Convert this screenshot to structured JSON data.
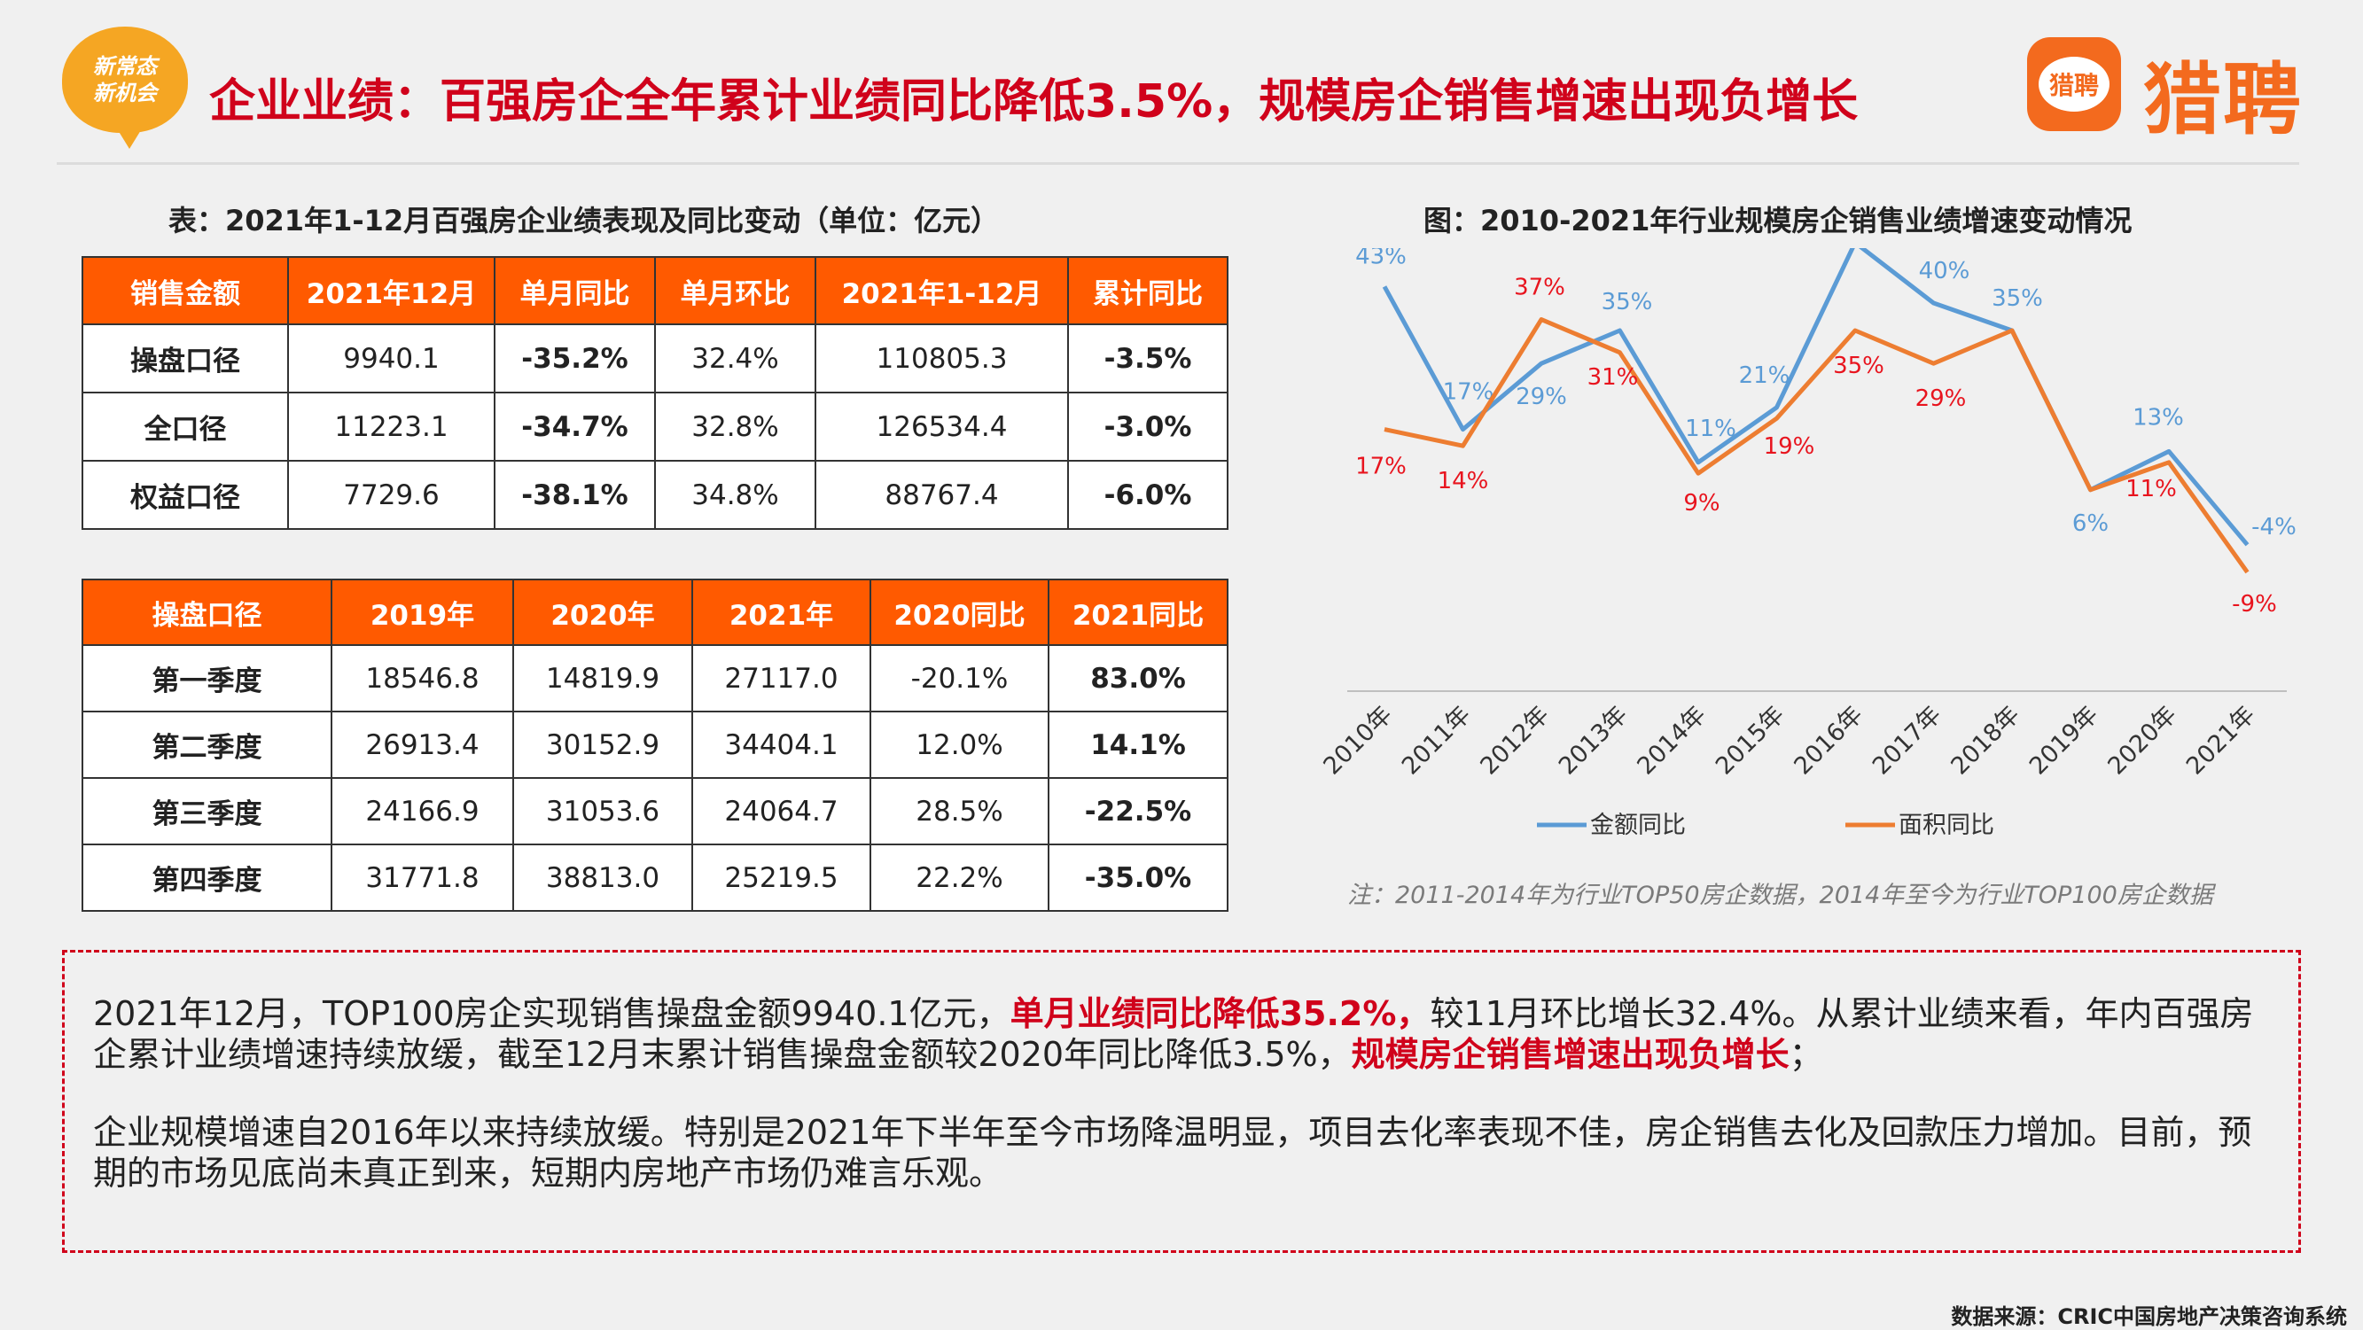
{
  "header": {
    "badge_line1": "新常态",
    "badge_line2": "新机会",
    "title": "企业业绩：百强房企全年累计业绩同比降低3.5%，规模房企销售增速出现负增长",
    "logo_icon_text": "猎聘",
    "logo_text": "猎聘"
  },
  "table1": {
    "title": "表：2021年1-12月百强房企业绩表现及同比变动（单位：亿元）",
    "headers": [
      "销售金额",
      "2021年12月",
      "单月同比",
      "单月环比",
      "2021年1-12月",
      "累计同比"
    ],
    "rows": [
      [
        "操盘口径",
        "9940.1",
        "-35.2%",
        "32.4%",
        "110805.3",
        "-3.5%"
      ],
      [
        "全口径",
        "11223.1",
        "-34.7%",
        "32.8%",
        "126534.4",
        "-3.0%"
      ],
      [
        "权益口径",
        "7729.6",
        "-38.1%",
        "34.8%",
        "88767.4",
        "-6.0%"
      ]
    ]
  },
  "table2": {
    "headers": [
      "操盘口径",
      "2019年",
      "2020年",
      "2021年",
      "2020同比",
      "2021同比"
    ],
    "rows": [
      [
        "第一季度",
        "18546.8",
        "14819.9",
        "27117.0",
        "-20.1%",
        "83.0%"
      ],
      [
        "第二季度",
        "26913.4",
        "30152.9",
        "34404.1",
        "12.0%",
        "14.1%"
      ],
      [
        "第三季度",
        "24166.9",
        "31053.6",
        "24064.7",
        "28.5%",
        "-22.5%"
      ],
      [
        "第四季度",
        "31771.8",
        "38813.0",
        "25219.5",
        "22.2%",
        "-35.0%"
      ]
    ]
  },
  "chart_data": {
    "type": "line",
    "title": "图：2010-2021年行业规模房企销售业绩增速变动情况",
    "categories": [
      "2010年",
      "2011年",
      "2012年",
      "2013年",
      "2014年",
      "2015年",
      "2016年",
      "2017年",
      "2018年",
      "2019年",
      "2020年",
      "2021年"
    ],
    "series": [
      {
        "name": "金额同比",
        "color": "#5b9bd5",
        "label_color": "#5b9bd5",
        "values": [
          43,
          17,
          29,
          35,
          11,
          21,
          51,
          40,
          35,
          6,
          13,
          -4
        ]
      },
      {
        "name": "面积同比",
        "color": "#ed7d31",
        "label_color": "#e8141e",
        "values": [
          17,
          14,
          37,
          31,
          9,
          19,
          35,
          29,
          35,
          6,
          11,
          -9
        ]
      }
    ],
    "value_suffix": "%",
    "legend": "bottom",
    "note": "注：2011-2014年为行业TOP50房企数据，2014年至今为行业TOP100房企数据"
  },
  "summary": {
    "p1_part1": "2021年12月，TOP100房企实现销售操盘金额9940.1亿元，",
    "p1_hl1": "单月业绩同比降低35.2%，",
    "p1_part2": "较11月环比增长32.4%。从累计业绩来看，年内百强房企累计业绩增速持续放缓，截至12月末累计销售操盘金额较2020年同比降低3.5%，",
    "p1_hl2": "规模房企销售增速出现负增长",
    "p1_part3": "；",
    "p2": "企业规模增速自2016年以来持续放缓。特别是2021年下半年至今市场降温明显，项目去化率表现不佳，房企销售去化及回款压力增加。目前，预期的市场见底尚未真正到来，短期内房地产市场仍难言乐观。"
  },
  "source": "数据来源：CRIC中国房地产决策咨询系统"
}
